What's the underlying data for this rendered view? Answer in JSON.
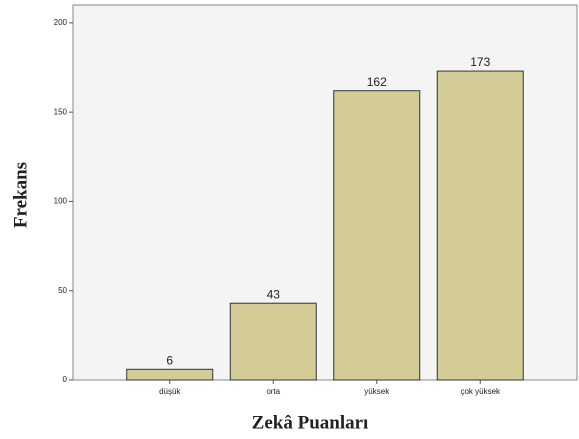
{
  "chart_data": {
    "type": "bar",
    "categories": [
      "düşük",
      "orta",
      "yüksek",
      "çok yüksek"
    ],
    "values": [
      6,
      43,
      162,
      173
    ],
    "color": "#d4cc96",
    "xlabel": "Zekâ Puanları",
    "ylabel": "Frekans",
    "ylim": [
      0,
      210
    ],
    "yticks": [
      0,
      50,
      100,
      150,
      200
    ]
  }
}
